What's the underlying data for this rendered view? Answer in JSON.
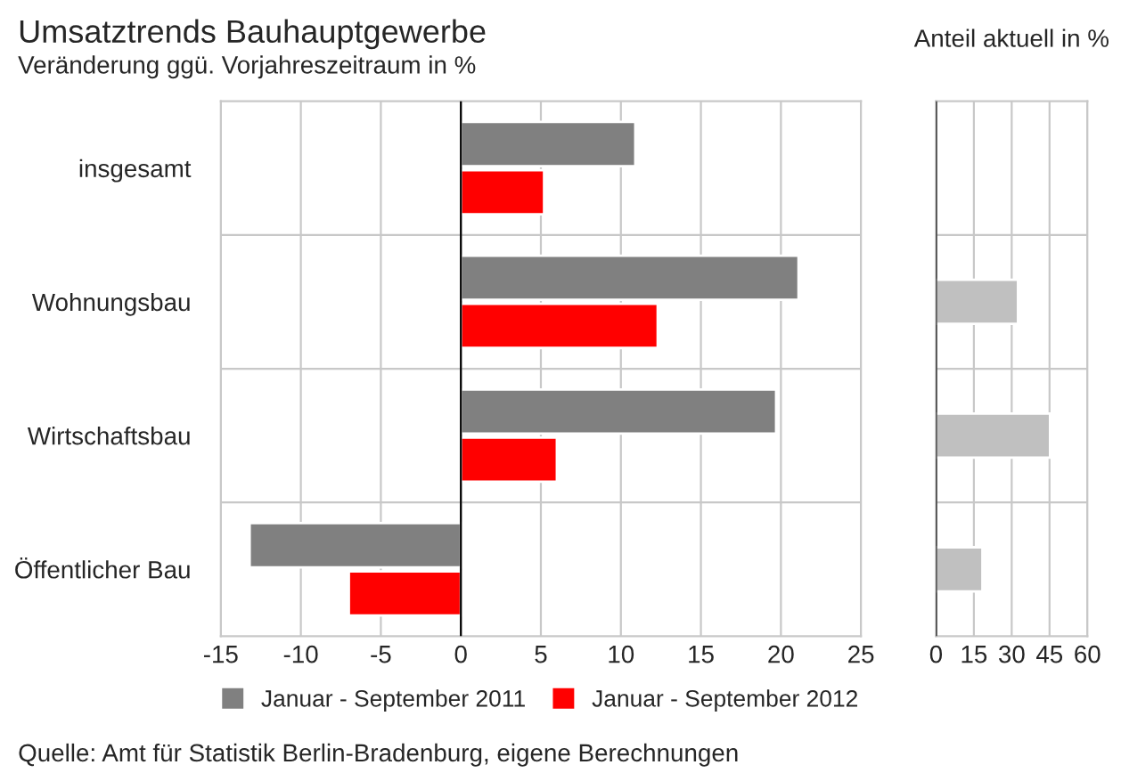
{
  "chart_data": [
    {
      "type": "bar",
      "orientation": "horizontal",
      "title": "Umsatztrends Bauhauptgewerbe",
      "subtitle": "Veränderung ggü. Vorjahreszeitraum in %",
      "categories": [
        "insgesamt",
        "Wohnungsbau",
        "Wirtschaftsbau",
        "Öffentlicher Bau"
      ],
      "series": [
        {
          "name": "Januar - September 2011",
          "color": "#808080",
          "values": [
            10.9,
            21.1,
            19.7,
            -13.2
          ]
        },
        {
          "name": "Januar - September 2012",
          "color": "#ff0000",
          "values": [
            5.2,
            12.3,
            6.0,
            -7.0
          ]
        }
      ],
      "xlim": [
        -15,
        25
      ],
      "xticks": [
        -15,
        -10,
        -5,
        0,
        5,
        10,
        15,
        20,
        25
      ],
      "grid": true,
      "legend": "bottom",
      "annotations": [
        "Quelle: Amt für Statistik Berlin-Bradenburg, eigene Berechnungen"
      ]
    },
    {
      "type": "bar",
      "orientation": "horizontal",
      "title": "Anteil aktuell in %",
      "categories": [
        null,
        null,
        null,
        null
      ],
      "series": [
        {
          "color": "#c0c0c0",
          "values": [
            null,
            32.5,
            45.2,
            18.4
          ]
        }
      ],
      "xlim": [
        0,
        60
      ],
      "xticks": [
        0,
        15,
        30,
        45,
        60
      ],
      "grid": true,
      "tick_labels": "x"
    }
  ]
}
